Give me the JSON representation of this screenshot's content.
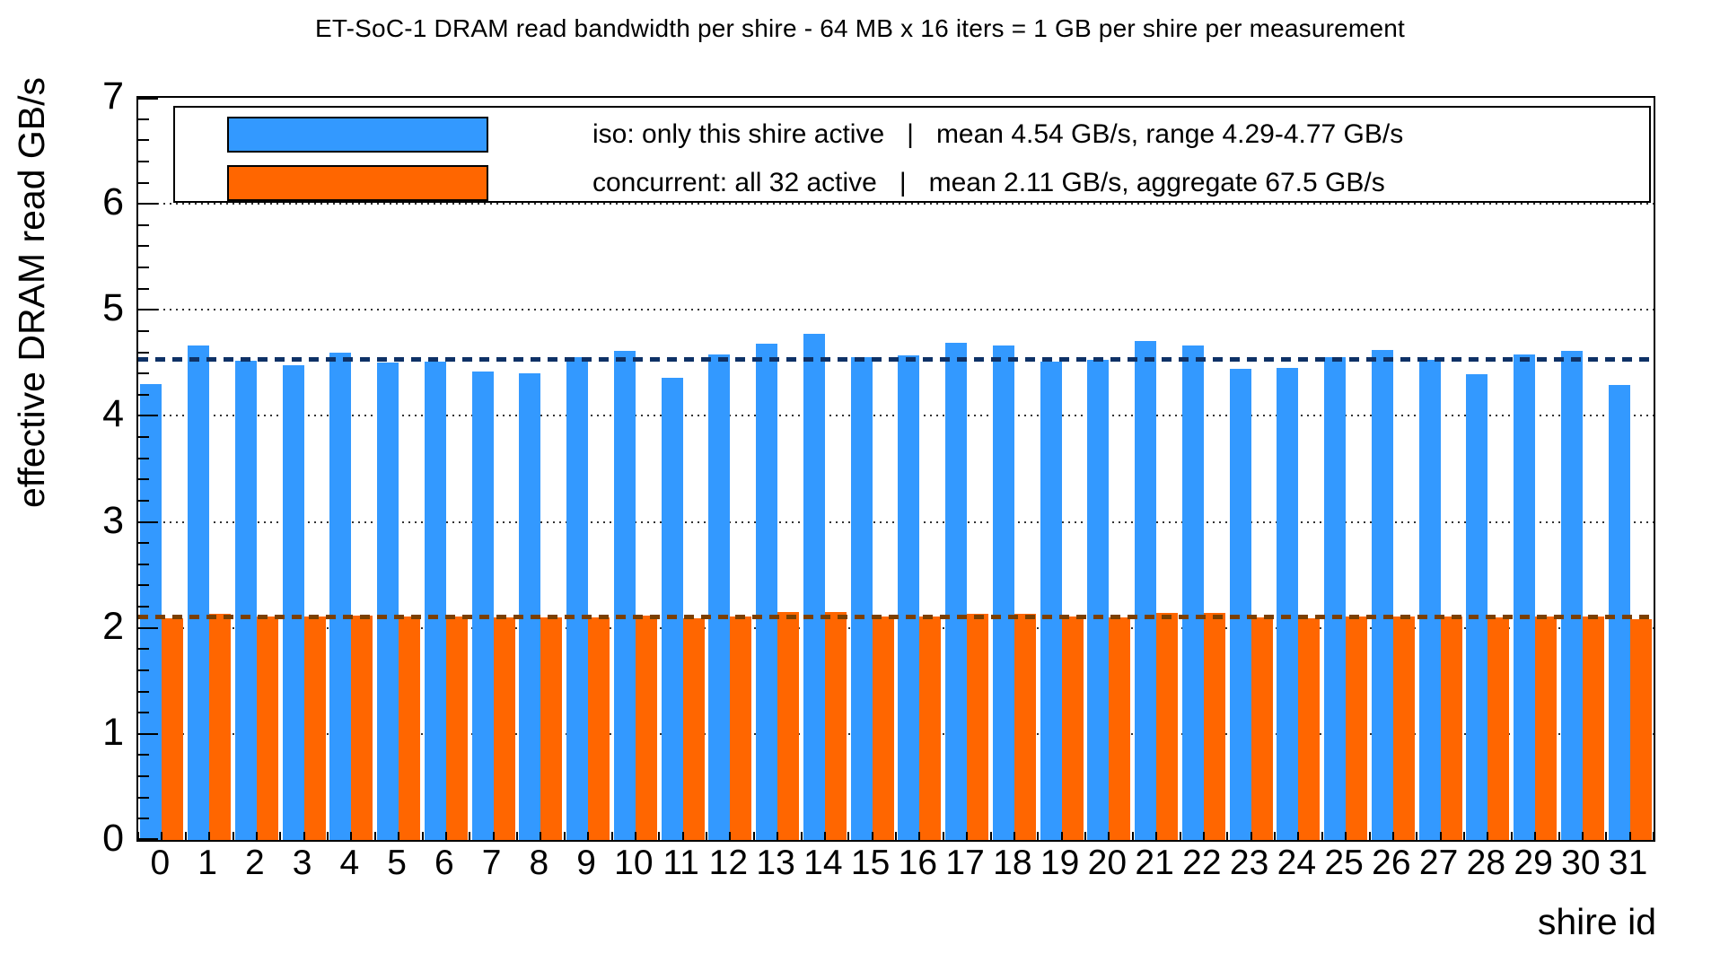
{
  "header": {
    "title": "ET-SoC-1 DRAM read bandwidth per shire  -  64 MB x 16 iters = 1 GB per shire per measurement"
  },
  "colors": {
    "iso_bar": "#3399FF",
    "concurrent_bar": "#FF6600",
    "iso_mean_line": "#0E3166",
    "concurrent_mean_line": "#7B3F00",
    "axis": "#000000",
    "background": "#FFFFFF"
  },
  "legend": {
    "rows": [
      {
        "series": "iso",
        "swatch_color": "#3399FF",
        "text": "iso: only this shire active   |   mean 4.54 GB/s, range 4.29-4.77 GB/s"
      },
      {
        "series": "concurrent",
        "swatch_color": "#FF6600",
        "text": "concurrent: all 32 active   |   mean 2.11 GB/s, aggregate 67.5 GB/s"
      }
    ]
  },
  "chart_data": {
    "type": "bar",
    "title": "ET-SoC-1 DRAM read bandwidth per shire  -  64 MB x 16 iters = 1 GB per shire per measurement",
    "xlabel": "shire id",
    "ylabel": "effective DRAM read GB/s",
    "ylim": [
      0,
      7
    ],
    "y_major_ticks": [
      0,
      1,
      2,
      3,
      4,
      5,
      6,
      7
    ],
    "y_minor_tick_step": 0.2,
    "grid": "dotted horizontal lines at integer values, behind bars",
    "legend_position": "top inside plot, full width box",
    "categories": [
      "0",
      "1",
      "2",
      "3",
      "4",
      "5",
      "6",
      "7",
      "8",
      "9",
      "10",
      "11",
      "12",
      "13",
      "14",
      "15",
      "16",
      "17",
      "18",
      "19",
      "20",
      "21",
      "22",
      "23",
      "24",
      "25",
      "26",
      "27",
      "28",
      "29",
      "30",
      "31"
    ],
    "series": [
      {
        "name": "iso: only this shire active",
        "color": "#3399FF",
        "mean": 4.54,
        "range": [
          4.29,
          4.77
        ],
        "values": [
          4.3,
          4.66,
          4.52,
          4.48,
          4.6,
          4.5,
          4.51,
          4.42,
          4.4,
          4.55,
          4.61,
          4.36,
          4.58,
          4.68,
          4.77,
          4.55,
          4.57,
          4.69,
          4.66,
          4.51,
          4.53,
          4.71,
          4.66,
          4.44,
          4.45,
          4.55,
          4.62,
          4.53,
          4.39,
          4.58,
          4.61,
          4.29
        ]
      },
      {
        "name": "concurrent: all 32 active",
        "color": "#FF6600",
        "mean": 2.11,
        "aggregate": 67.5,
        "values": [
          2.09,
          2.13,
          2.11,
          2.11,
          2.12,
          2.11,
          2.11,
          2.1,
          2.1,
          2.1,
          2.12,
          2.09,
          2.11,
          2.15,
          2.15,
          2.11,
          2.11,
          2.13,
          2.13,
          2.11,
          2.1,
          2.14,
          2.14,
          2.1,
          2.09,
          2.11,
          2.11,
          2.11,
          2.1,
          2.11,
          2.11,
          2.08
        ]
      }
    ],
    "mean_lines": [
      {
        "series": "iso",
        "value": 4.54,
        "style": "dashed",
        "color": "#0E3166"
      },
      {
        "series": "concurrent",
        "value": 2.11,
        "style": "dashed",
        "color": "#7B3F00"
      }
    ]
  }
}
